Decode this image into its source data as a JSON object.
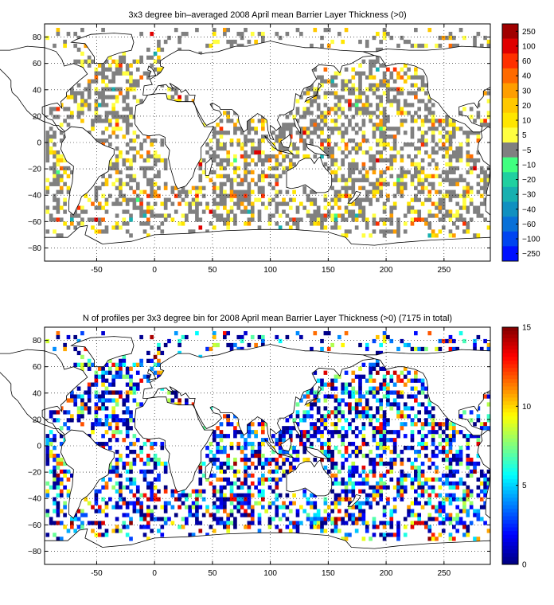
{
  "chart_data": [
    {
      "type": "heatmap",
      "title": "3x3 degree bin–averaged 2008 April mean Barrier Layer Thickness (>0)",
      "x_ticks": [
        "-50",
        "0",
        "50",
        "100",
        "150",
        "200",
        "250"
      ],
      "x_tick_values": [
        -50,
        0,
        50,
        100,
        150,
        200,
        250
      ],
      "y_ticks": [
        "80",
        "60",
        "40",
        "20",
        "0",
        "−20",
        "−40",
        "−60",
        "−80"
      ],
      "y_tick_values": [
        80,
        60,
        40,
        20,
        0,
        -20,
        -40,
        -60,
        -80
      ],
      "xlim": [
        -95,
        290
      ],
      "ylim": [
        -90,
        90
      ],
      "grid": true,
      "colorbar_labels": [
        "250",
        "100",
        "60",
        "40",
        "30",
        "20",
        "10",
        "5",
        "−5",
        "−10",
        "−20",
        "−30",
        "−40",
        "−60",
        "−100",
        "−250"
      ],
      "colorbar_colors": [
        "#a00000",
        "#e00000",
        "#ff3000",
        "#ff6a00",
        "#ff9e00",
        "#ffc800",
        "#ffe600",
        "#ffff40",
        "#808080",
        "#40ff80",
        "#20d0a0",
        "#18b0b0",
        "#1090c0",
        "#0870d8",
        "#0044f0",
        "#0010ff"
      ],
      "land_color": "#ffffff",
      "no_data_color": "#ffffff"
    },
    {
      "type": "heatmap",
      "title": "N of profiles per 3x3 degree bin for 2008 April mean Barrier Layer Thickness (>0) (7175 in total)",
      "x_ticks": [
        "-50",
        "0",
        "50",
        "100",
        "150",
        "200",
        "250"
      ],
      "x_tick_values": [
        -50,
        0,
        50,
        100,
        150,
        200,
        250
      ],
      "y_ticks": [
        "80",
        "60",
        "40",
        "20",
        "0",
        "−20",
        "−40",
        "−60",
        "−80"
      ],
      "y_tick_values": [
        80,
        60,
        40,
        20,
        0,
        -20,
        -40,
        -60,
        -80
      ],
      "xlim": [
        -95,
        290
      ],
      "ylim": [
        -90,
        90
      ],
      "grid": true,
      "colorbar_range": [
        0,
        15
      ],
      "colorbar_ticks": [
        "15",
        "10",
        "5",
        "0"
      ],
      "colorbar_tick_values": [
        15,
        10,
        5,
        0
      ],
      "colormap": "jet",
      "total_profiles": 7175
    }
  ]
}
